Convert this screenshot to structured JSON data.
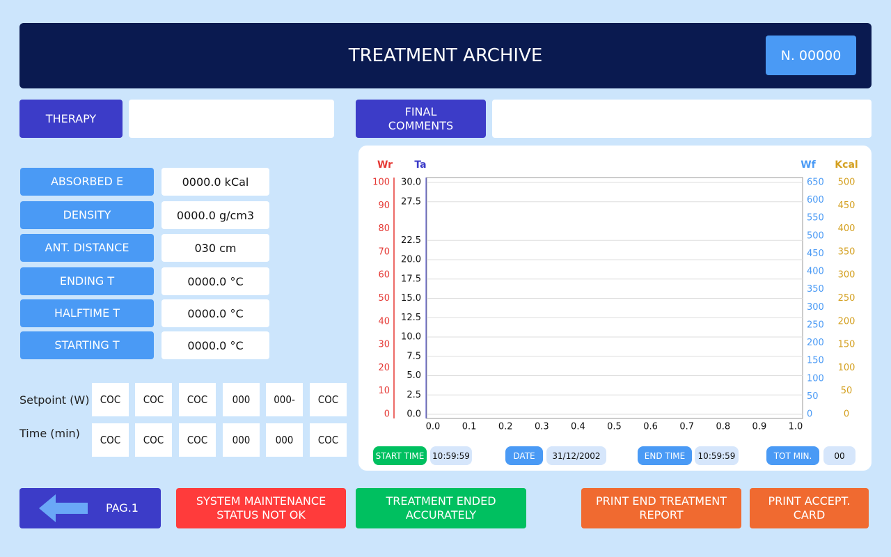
{
  "header": {
    "title": "TREATMENT ARCHIVE",
    "number": "N. 00000"
  },
  "therapy": {
    "label": "THERAPY"
  },
  "final_comments": {
    "label": "FINAL\nCOMMENTS"
  },
  "fields": [
    {
      "label": "ABSORBED E",
      "value": "0000.0 kCal"
    },
    {
      "label": "DENSITY",
      "value": "0000.0 g/cm3"
    },
    {
      "label": "ANT. DISTANCE",
      "value": "030 cm"
    },
    {
      "label": "ENDING T",
      "value": "0000.0 °C"
    },
    {
      "label": "HALFTIME T",
      "value": "0000.0 °C"
    },
    {
      "label": "STARTING T",
      "value": "0000.0 °C"
    }
  ],
  "setpoint": {
    "label": "Setpoint (W)",
    "cells": [
      "COC",
      "COC",
      "COC",
      "000",
      "000-",
      "COC"
    ]
  },
  "time": {
    "label": "Time (min)",
    "cells": [
      "COC",
      "COC",
      "COC",
      "000",
      "000",
      "COC"
    ]
  },
  "info": [
    {
      "label": "START TIME",
      "value": "10:59:59"
    },
    {
      "label": "DATE",
      "value": "31/12/2002"
    },
    {
      "label": "END TIME",
      "value": "10:59:59"
    },
    {
      "label": "TOT MIN.",
      "value": "00"
    }
  ],
  "buttons": {
    "back": "PAG.1",
    "maintenance": "SYSTEM MAINTENANCE\nSTATUS NOT OK",
    "treatment": "TREATMENT ENDED\nACCURATELY",
    "print_report": "PRINT END TREATMENT\nREPORT",
    "print_card": "PRINT ACCEPT.\nCARD"
  },
  "chart_data": {
    "type": "line",
    "series": [],
    "grid": true,
    "xlim": [
      0,
      1
    ],
    "xticks": [
      {
        "value": 0,
        "label": "0.0"
      },
      0.1,
      0.2,
      0.3,
      0.4,
      0.5,
      0.6,
      0.7,
      0.8,
      0.9,
      {
        "value": 1,
        "label": "1.0"
      }
    ],
    "y_axes": [
      {
        "label": "Wr",
        "color": "#e53935",
        "ylim": [
          0,
          100
        ],
        "yticks": [
          0,
          10,
          20,
          30,
          40,
          50,
          60,
          70,
          80,
          90,
          100
        ]
      },
      {
        "label": "Ta",
        "color": "#3c3cc8",
        "ylim": [
          0,
          30
        ],
        "yticks": [
          {
            "value": 0,
            "label": "0.0"
          },
          2.5,
          {
            "value": 5,
            "label": "5.0"
          },
          7.5,
          {
            "value": 10,
            "label": "10.0"
          },
          12.5,
          {
            "value": 15,
            "label": "15.0"
          },
          17.5,
          {
            "value": 20,
            "label": "20.0"
          },
          22.5,
          27.5,
          {
            "value": 30,
            "label": "30.0"
          }
        ]
      },
      {
        "label": "Wf",
        "color": "#4a9af5",
        "ylim": [
          0,
          650
        ],
        "yticks": [
          0,
          50,
          100,
          150,
          200,
          250,
          300,
          350,
          400,
          450,
          500,
          550,
          600,
          650
        ]
      },
      {
        "label": "Kcal",
        "color": "#d4a020",
        "ylim": [
          0,
          500
        ],
        "yticks": [
          0,
          50,
          100,
          150,
          200,
          250,
          300,
          350,
          400,
          450,
          500
        ]
      }
    ]
  }
}
